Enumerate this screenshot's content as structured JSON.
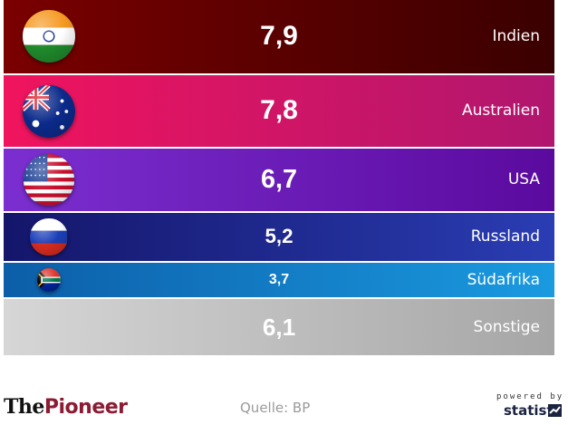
{
  "chart_data": {
    "type": "bar",
    "title": "",
    "xlabel": "",
    "ylabel": "",
    "categories": [
      "Indien",
      "Australien",
      "USA",
      "Russland",
      "Südafrika",
      "Sonstige"
    ],
    "values": [
      7.9,
      7.8,
      6.7,
      5.2,
      3.7,
      6.1
    ],
    "value_labels": [
      "7,9",
      "7,8",
      "6,7",
      "5,2",
      "3,7",
      "6,1"
    ],
    "flag_icons": [
      "india-flag-icon",
      "australia-flag-icon",
      "usa-flag-icon",
      "russia-flag-icon",
      "south-africa-flag-icon",
      ""
    ],
    "bar_colors": [
      [
        "#7a0000",
        "#3a0000"
      ],
      [
        "#f0145e",
        "#b0166e"
      ],
      [
        "#7b2fd0",
        "#5b0a9e"
      ],
      [
        "#14166a",
        "#2a3db3"
      ],
      [
        "#0c5ea8",
        "#1a9ae0"
      ],
      [
        "#d6d6d6",
        "#a6a6a6"
      ]
    ],
    "orientation": "stacked-horizontal-bands",
    "grid": false,
    "legend": "none"
  },
  "footer": {
    "brand_prefix": "The",
    "brand_name": "Pioneer",
    "source": "Quelle: BP",
    "powered_by": "powered by",
    "statista": "statista"
  }
}
